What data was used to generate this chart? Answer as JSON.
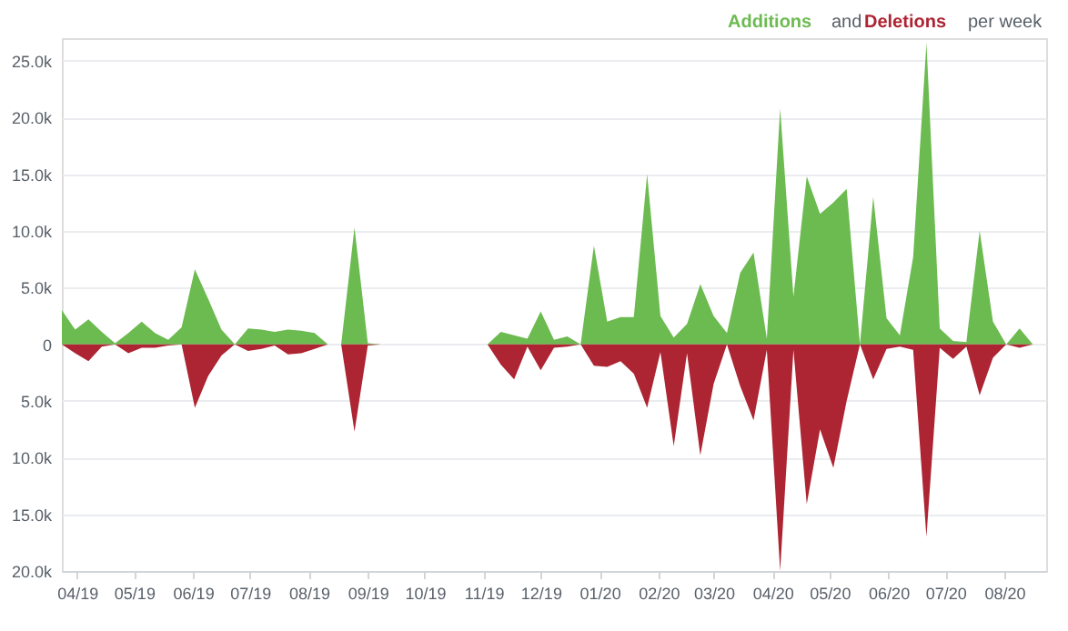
{
  "chart_data": {
    "type": "area",
    "x": [
      "2019-03-24",
      "2019-03-31",
      "2019-04-07",
      "2019-04-14",
      "2019-04-21",
      "2019-04-28",
      "2019-05-05",
      "2019-05-12",
      "2019-05-19",
      "2019-05-26",
      "2019-06-02",
      "2019-06-09",
      "2019-06-16",
      "2019-06-23",
      "2019-06-30",
      "2019-07-07",
      "2019-07-14",
      "2019-07-21",
      "2019-07-28",
      "2019-08-04",
      "2019-08-11",
      "2019-08-18",
      "2019-08-25",
      "2019-09-01",
      "2019-09-08",
      "2019-09-15",
      "2019-09-22",
      "2019-09-29",
      "2019-10-06",
      "2019-10-13",
      "2019-10-20",
      "2019-10-27",
      "2019-11-03",
      "2019-11-10",
      "2019-11-17",
      "2019-11-24",
      "2019-12-01",
      "2019-12-08",
      "2019-12-15",
      "2019-12-22",
      "2019-12-29",
      "2020-01-05",
      "2020-01-12",
      "2020-01-19",
      "2020-01-26",
      "2020-02-02",
      "2020-02-09",
      "2020-02-16",
      "2020-02-23",
      "2020-03-01",
      "2020-03-08",
      "2020-03-15",
      "2020-03-22",
      "2020-03-29",
      "2020-04-05",
      "2020-04-12",
      "2020-04-19",
      "2020-04-26",
      "2020-05-03",
      "2020-05-10",
      "2020-05-17",
      "2020-05-24",
      "2020-05-31",
      "2020-06-07",
      "2020-06-14",
      "2020-06-21",
      "2020-06-28",
      "2020-07-05",
      "2020-07-12",
      "2020-07-19",
      "2020-07-26",
      "2020-08-02",
      "2020-08-09",
      "2020-08-16"
    ],
    "series": [
      {
        "name": "Additions",
        "color": "#6cbb50",
        "values": [
          3000,
          1300,
          2200,
          1100,
          100,
          1000,
          2000,
          1000,
          400,
          1500,
          6600,
          4000,
          1300,
          0,
          1400,
          1300,
          1100,
          1300,
          1200,
          1000,
          0,
          0,
          10300,
          100,
          0,
          0,
          0,
          0,
          0,
          0,
          0,
          0,
          0,
          1100,
          800,
          500,
          2900,
          400,
          700,
          0,
          8700,
          2000,
          2400,
          2400,
          15000,
          2500,
          600,
          1800,
          5300,
          2500,
          1000,
          6300,
          8100,
          500,
          20800,
          4200,
          14800,
          11500,
          12500,
          13700,
          0,
          13000,
          2300,
          800,
          7700,
          26600,
          1400,
          300,
          200,
          10000,
          2000,
          0,
          1400,
          0
        ]
      },
      {
        "name": "Deletions",
        "color": "#ad2432",
        "values": [
          0,
          -800,
          -1500,
          -200,
          0,
          -800,
          -300,
          -300,
          -100,
          0,
          -5600,
          -2800,
          -1000,
          0,
          -600,
          -400,
          -100,
          -900,
          -800,
          -400,
          0,
          0,
          -7700,
          -100,
          0,
          0,
          0,
          0,
          0,
          0,
          0,
          0,
          0,
          -1800,
          -3100,
          -200,
          -2300,
          -300,
          -200,
          0,
          -1900,
          -2000,
          -1500,
          -2600,
          -5600,
          -700,
          -9000,
          -800,
          -9800,
          -3500,
          0,
          -3700,
          -6700,
          -500,
          -20000,
          -500,
          -14100,
          -7500,
          -10900,
          -5000,
          0,
          -3100,
          -400,
          -200,
          -500,
          -17000,
          -300,
          -1300,
          -200,
          -4500,
          -1200,
          0,
          -300,
          0
        ]
      }
    ],
    "annotations": [
      "and",
      "per week"
    ],
    "xlim": [
      "2019-03-24",
      "2020-08-23"
    ],
    "xticks": [
      {
        "value": "2019-04-01",
        "label": "04/19"
      },
      {
        "value": "2019-05-01",
        "label": "05/19"
      },
      {
        "value": "2019-06-01",
        "label": "06/19"
      },
      {
        "value": "2019-07-01",
        "label": "07/19"
      },
      {
        "value": "2019-08-01",
        "label": "08/19"
      },
      {
        "value": "2019-09-01",
        "label": "09/19"
      },
      {
        "value": "2019-10-01",
        "label": "10/19"
      },
      {
        "value": "2019-11-01",
        "label": "11/19"
      },
      {
        "value": "2019-12-01",
        "label": "12/19"
      },
      {
        "value": "2020-01-01",
        "label": "01/20"
      },
      {
        "value": "2020-02-01",
        "label": "02/20"
      },
      {
        "value": "2020-03-01",
        "label": "03/20"
      },
      {
        "value": "2020-04-01",
        "label": "04/20"
      },
      {
        "value": "2020-05-01",
        "label": "05/20"
      },
      {
        "value": "2020-06-01",
        "label": "06/20"
      },
      {
        "value": "2020-07-01",
        "label": "07/20"
      },
      {
        "value": "2020-08-01",
        "label": "08/20"
      }
    ],
    "ylim": [
      -20000,
      27000
    ],
    "yticks": [
      {
        "value": -20000,
        "label": "20.0k"
      },
      {
        "value": -15000,
        "label": "15.0k"
      },
      {
        "value": -10000,
        "label": "10.0k"
      },
      {
        "value": -5000,
        "label": "5.0k"
      },
      0,
      {
        "value": 5000,
        "label": "5.0k"
      },
      {
        "value": 10000,
        "label": "10.0k"
      },
      {
        "value": 15000,
        "label": "15.0k"
      },
      {
        "value": 20000,
        "label": "20.0k"
      },
      {
        "value": 25000,
        "label": "25.0k"
      }
    ],
    "grid": "y",
    "legend": "top right"
  }
}
